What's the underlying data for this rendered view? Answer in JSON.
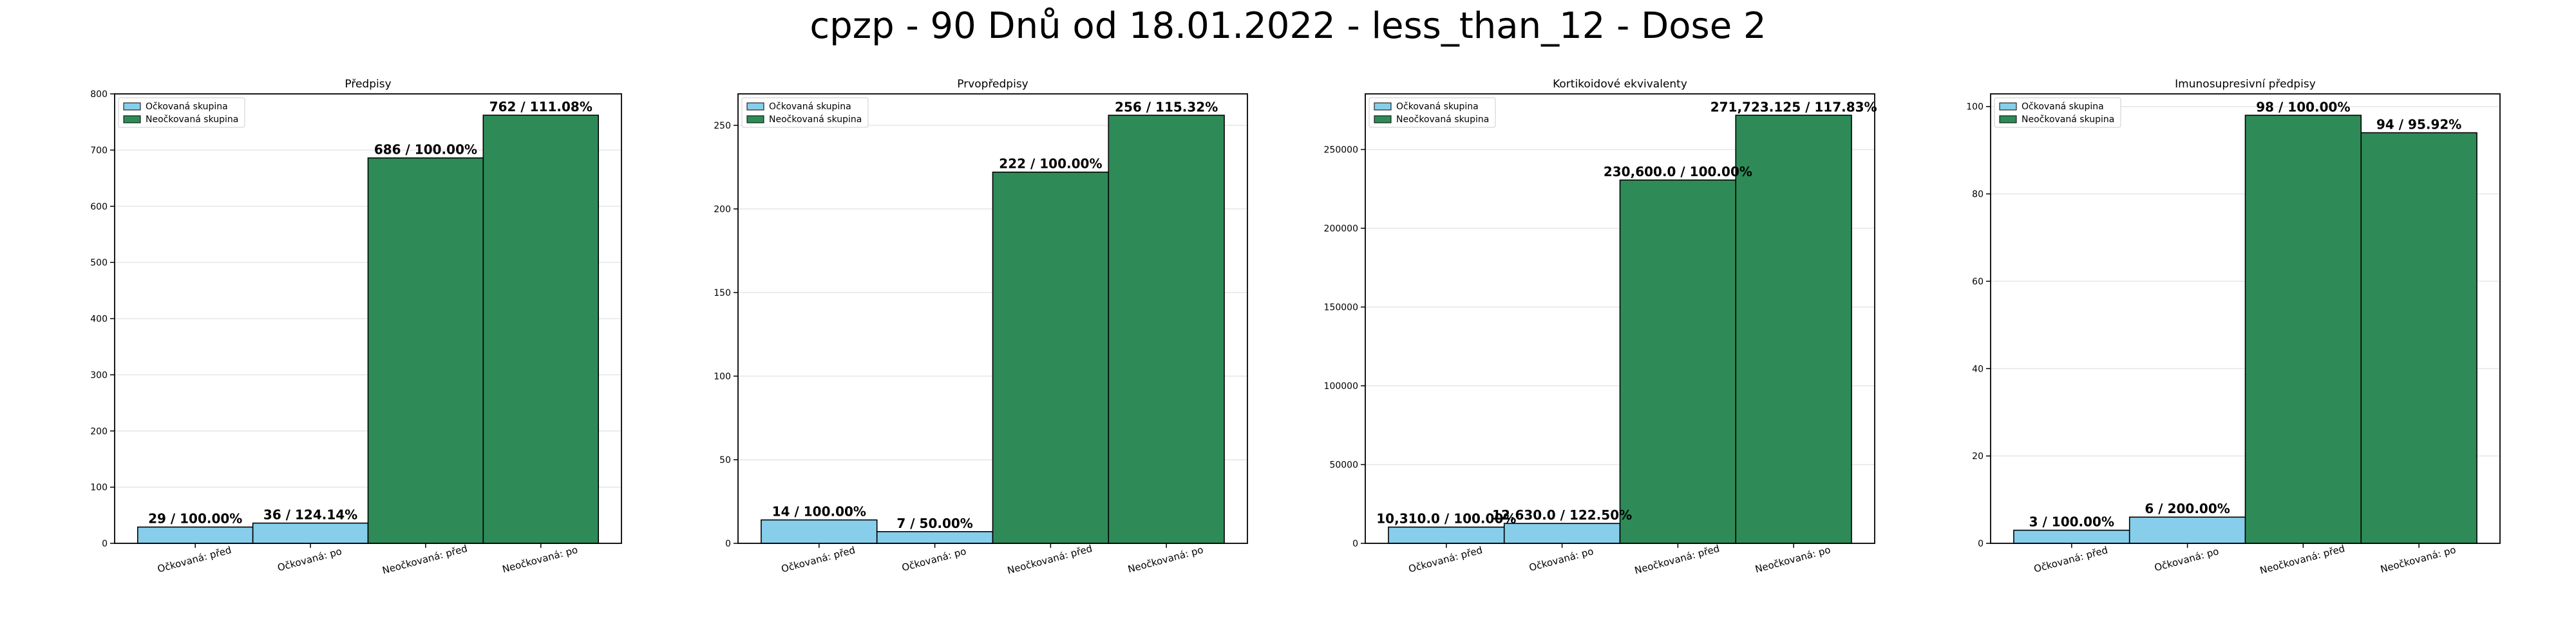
{
  "suptitle": "cpzp - 90 Dnů od 18.01.2022 - less_than_12 - Dose 2",
  "colors": {
    "vaccinated": "#87CEEB",
    "unvaccinated": "#2E8B57",
    "edge": "#000000",
    "grid": "#e6e6e6"
  },
  "chart_data": [
    {
      "type": "bar",
      "title": "Předpisy",
      "categories": [
        "Očkovaná: před",
        "Očkovaná: po",
        "Neočkovaná: před",
        "Neočkovaná: po"
      ],
      "values": [
        29,
        36,
        686,
        762
      ],
      "labels": [
        "29 / 100.00%",
        "36 / 124.14%",
        "686 / 100.00%",
        "762 / 111.08%"
      ],
      "groups": [
        "vaccinated",
        "vaccinated",
        "unvaccinated",
        "unvaccinated"
      ],
      "legend": [
        "Očkovaná skupina",
        "Neočkovaná skupina"
      ],
      "legend_position": "top-left",
      "ylim": [
        0,
        800
      ],
      "yticks": [
        0,
        100,
        200,
        300,
        400,
        500,
        600,
        700,
        800
      ],
      "ytick_labels": [
        "0",
        "100",
        "200",
        "300",
        "400",
        "500",
        "600",
        "700",
        "800"
      ],
      "grid": true
    },
    {
      "type": "bar",
      "title": "Prvopředpisy",
      "categories": [
        "Očkovaná: před",
        "Očkovaná: po",
        "Neočkovaná: před",
        "Neočkovaná: po"
      ],
      "values": [
        14,
        7,
        222,
        256
      ],
      "labels": [
        "14 / 100.00%",
        "7 / 50.00%",
        "222 / 100.00%",
        "256 / 115.32%"
      ],
      "groups": [
        "vaccinated",
        "vaccinated",
        "unvaccinated",
        "unvaccinated"
      ],
      "legend": [
        "Očkovaná skupina",
        "Neočkovaná skupina"
      ],
      "legend_position": "top-left",
      "ylim": [
        0,
        268.8
      ],
      "yticks": [
        0,
        50,
        100,
        150,
        200,
        250
      ],
      "ytick_labels": [
        "0",
        "50",
        "100",
        "150",
        "200",
        "250"
      ],
      "grid": true
    },
    {
      "type": "bar",
      "title": "Kortikoidové ekvivalenty",
      "categories": [
        "Očkovaná: před",
        "Očkovaná: po",
        "Neočkovaná: před",
        "Neočkovaná: po"
      ],
      "values": [
        10310.0,
        12630.0,
        230600.0,
        271723.125
      ],
      "labels": [
        "10,310.0 / 100.00%",
        "12,630.0 / 122.50%",
        "230,600.0 / 100.00%",
        "271,723.125 / 117.83%"
      ],
      "groups": [
        "vaccinated",
        "vaccinated",
        "unvaccinated",
        "unvaccinated"
      ],
      "legend": [
        "Očkovaná skupina",
        "Neočkovaná skupina"
      ],
      "legend_position": "top-left",
      "ylim": [
        0,
        285300
      ],
      "yticks": [
        0,
        50000,
        100000,
        150000,
        200000,
        250000
      ],
      "ytick_labels": [
        "0",
        "50000",
        "100000",
        "150000",
        "200000",
        "250000"
      ],
      "grid": true
    },
    {
      "type": "bar",
      "title": "Imunosupresivní předpisy",
      "categories": [
        "Očkovaná: před",
        "Očkovaná: po",
        "Neočkovaná: před",
        "Neočkovaná: po"
      ],
      "values": [
        3,
        6,
        98,
        94
      ],
      "labels": [
        "3 / 100.00%",
        "6 / 200.00%",
        "98 / 100.00%",
        "94 / 95.92%"
      ],
      "groups": [
        "vaccinated",
        "vaccinated",
        "unvaccinated",
        "unvaccinated"
      ],
      "legend": [
        "Očkovaná skupina",
        "Neočkovaná skupina"
      ],
      "legend_position": "top-left",
      "ylim": [
        0,
        102.9
      ],
      "yticks": [
        0,
        20,
        40,
        60,
        80,
        100
      ],
      "ytick_labels": [
        "0",
        "20",
        "40",
        "60",
        "80",
        "100"
      ],
      "grid": true
    }
  ]
}
